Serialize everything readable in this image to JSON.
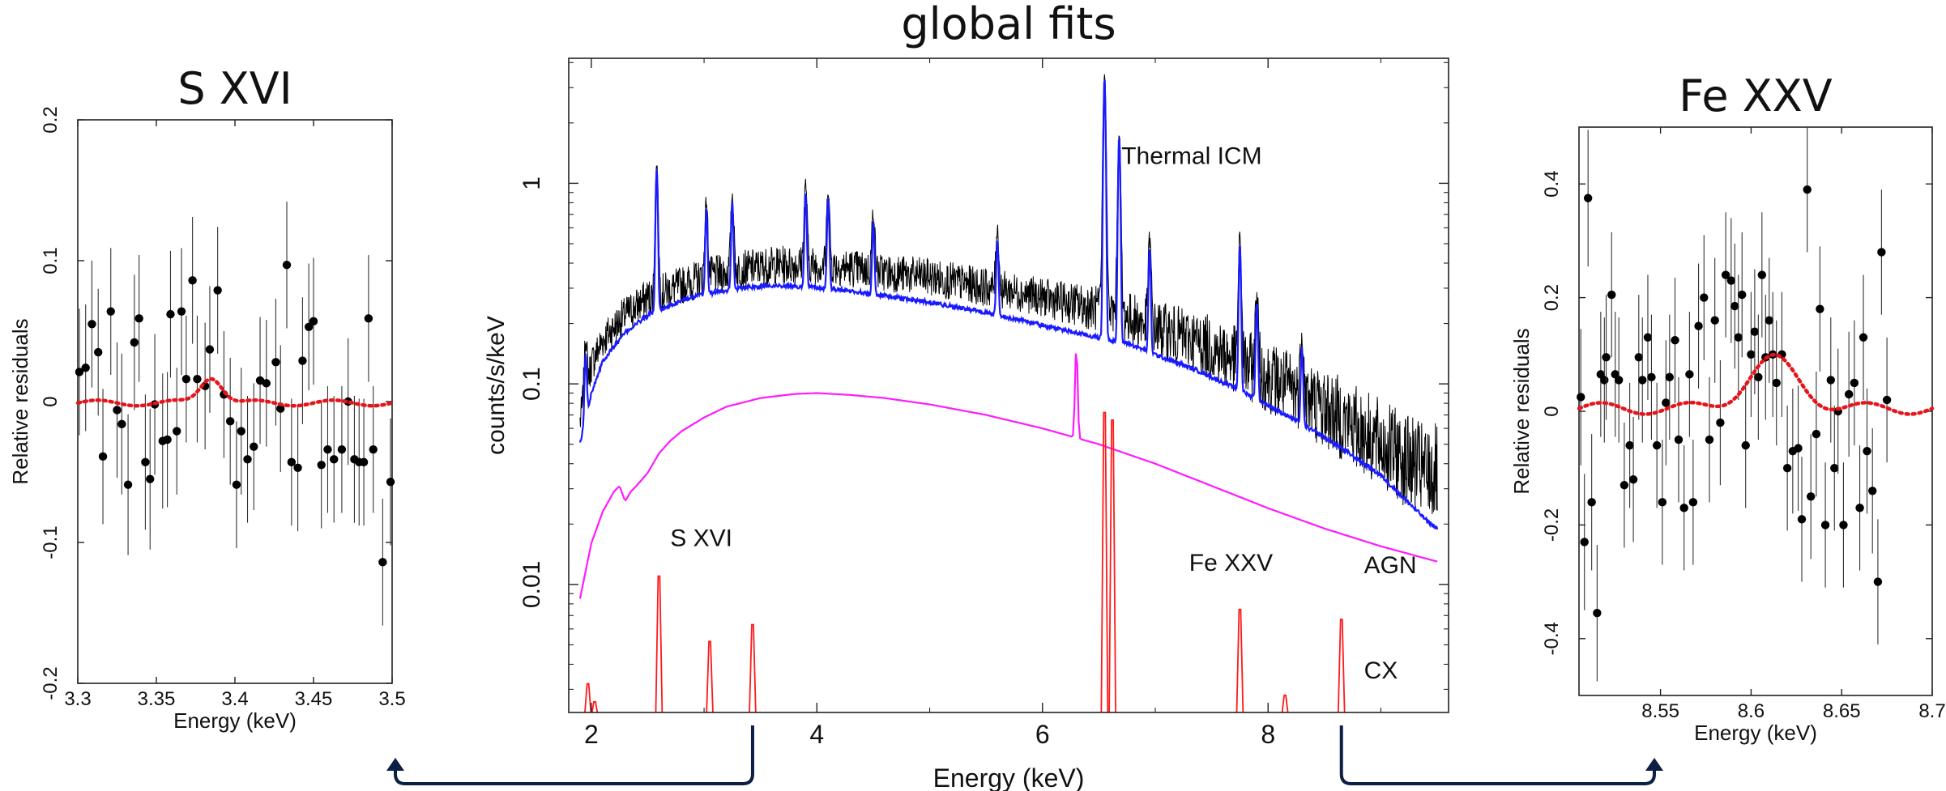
{
  "colors": {
    "data": "#000000",
    "thermal": "#1a1aff",
    "agn": "#ff1aff",
    "cx": "#ff1a1a",
    "model_dotted": "#e6151b",
    "arrow": "#0c1f44"
  },
  "chart_data": [
    {
      "id": "sxvi",
      "type": "scatter",
      "title": "S XVI",
      "xlabel": "Energy (keV)",
      "ylabel": "Relative residuals",
      "xlim": [
        3.3,
        3.5
      ],
      "ylim": [
        -0.2,
        0.2
      ],
      "x_ticks": [
        "3.3",
        "3.35",
        "3.4",
        "3.45",
        "3.5"
      ],
      "x_tick_values": [
        3.3,
        3.35,
        3.4,
        3.45,
        3.5
      ],
      "y_ticks": [
        "-0.2",
        "-0.1",
        "0",
        "0.1",
        "0.2"
      ],
      "y_tick_values": [
        -0.2,
        -0.1,
        0,
        0.1,
        0.2
      ],
      "points": [
        [
          3.301,
          0.021,
          0.045
        ],
        [
          3.305,
          0.024,
          0.045
        ],
        [
          3.309,
          0.055,
          0.045
        ],
        [
          3.313,
          0.035,
          0.045
        ],
        [
          3.316,
          -0.039,
          0.048
        ],
        [
          3.321,
          0.064,
          0.045
        ],
        [
          3.325,
          -0.006,
          0.048
        ],
        [
          3.328,
          -0.016,
          0.05
        ],
        [
          3.332,
          -0.059,
          0.05
        ],
        [
          3.336,
          0.042,
          0.048
        ],
        [
          3.339,
          0.059,
          0.045
        ],
        [
          3.343,
          -0.043,
          0.048
        ],
        [
          3.346,
          -0.055,
          0.05
        ],
        [
          3.349,
          -0.002,
          0.05
        ],
        [
          3.354,
          -0.028,
          0.048
        ],
        [
          3.357,
          -0.027,
          0.048
        ],
        [
          3.359,
          0.062,
          0.045
        ],
        [
          3.363,
          -0.021,
          0.045
        ],
        [
          3.366,
          0.064,
          0.045
        ],
        [
          3.369,
          0.016,
          0.045
        ],
        [
          3.373,
          0.086,
          0.045
        ],
        [
          3.376,
          0.016,
          0.045
        ],
        [
          3.381,
          0.011,
          0.045
        ],
        [
          3.384,
          0.037,
          0.045
        ],
        [
          3.389,
          0.079,
          0.045
        ],
        [
          3.393,
          0.005,
          0.045
        ],
        [
          3.397,
          -0.014,
          0.045
        ],
        [
          3.401,
          -0.059,
          0.045
        ],
        [
          3.404,
          -0.021,
          0.045
        ],
        [
          3.408,
          -0.041,
          0.045
        ],
        [
          3.412,
          -0.032,
          0.045
        ],
        [
          3.416,
          0.015,
          0.045
        ],
        [
          3.42,
          0.013,
          0.045
        ],
        [
          3.426,
          0.028,
          0.045
        ],
        [
          3.429,
          -0.005,
          0.045
        ],
        [
          3.433,
          0.097,
          0.045
        ],
        [
          3.436,
          -0.043,
          0.045
        ],
        [
          3.44,
          -0.047,
          0.045
        ],
        [
          3.443,
          0.029,
          0.045
        ],
        [
          3.447,
          0.053,
          0.045
        ],
        [
          3.45,
          0.057,
          0.045
        ],
        [
          3.455,
          -0.045,
          0.045
        ],
        [
          3.459,
          -0.034,
          0.045
        ],
        [
          3.463,
          -0.041,
          0.045
        ],
        [
          3.468,
          -0.034,
          0.045
        ],
        [
          3.472,
          0.0,
          0.045
        ],
        [
          3.476,
          -0.041,
          0.045
        ],
        [
          3.479,
          -0.043,
          0.045
        ],
        [
          3.482,
          -0.043,
          0.045
        ],
        [
          3.485,
          0.059,
          0.045
        ],
        [
          3.488,
          -0.034,
          0.045
        ],
        [
          3.494,
          -0.114,
          0.045
        ],
        [
          3.499,
          -0.057,
          0.045
        ]
      ],
      "model": {
        "type": "gaussian",
        "baseline": -0.001,
        "center": 3.385,
        "amplitude": 0.019,
        "sigma": 0.007,
        "ripple": 0.002
      }
    },
    {
      "id": "global",
      "type": "line",
      "title": "global fits",
      "xlabel": "Energy (keV)",
      "ylabel": "counts/s/keV",
      "xlim": [
        1.8,
        9.6
      ],
      "ylim": [
        0.0023,
        4.2
      ],
      "yscale": "log",
      "x_ticks": [
        "2",
        "4",
        "6",
        "8"
      ],
      "x_tick_values": [
        2,
        4,
        6,
        8
      ],
      "y_ticks": [
        "0.01",
        "0.1",
        "1"
      ],
      "y_tick_values": [
        0.01,
        0.1,
        1
      ],
      "annotations": [
        {
          "text": "Thermal ICM",
          "x": 6.7,
          "y": 1.25,
          "color": "#1a1aff"
        },
        {
          "text": "S XVI",
          "x": 2.7,
          "y": 0.0155,
          "color": "#ff1a1a"
        },
        {
          "text": "Fe XXV",
          "x": 7.3,
          "y": 0.0117,
          "color": "#ff1a1a"
        },
        {
          "text": "AGN",
          "x": 8.85,
          "y": 0.0114,
          "color": "#ff1aff"
        },
        {
          "text": "CX",
          "x": 8.85,
          "y": 0.0034,
          "color": "#ff1a1a"
        }
      ],
      "series": [
        {
          "role": "observed",
          "color": "#000000",
          "x": [
            1.9,
            2.0,
            2.1,
            2.3,
            2.5,
            2.8,
            3.0,
            3.3,
            3.6,
            3.9,
            4.2,
            4.6,
            5.0,
            5.4,
            5.8,
            6.2,
            6.45,
            6.75,
            7.0,
            7.4,
            7.8,
            8.2,
            8.6,
            9.0,
            9.4
          ],
          "y": [
            0.065,
            0.125,
            0.165,
            0.22,
            0.27,
            0.31,
            0.34,
            0.37,
            0.39,
            0.395,
            0.385,
            0.36,
            0.34,
            0.31,
            0.285,
            0.255,
            0.24,
            0.215,
            0.19,
            0.16,
            0.125,
            0.095,
            0.07,
            0.05,
            0.036
          ]
        },
        {
          "role": "thermal_icm",
          "color": "#1a1aff",
          "x": [
            1.9,
            2.0,
            2.1,
            2.3,
            2.5,
            2.8,
            3.0,
            3.3,
            3.6,
            3.9,
            4.2,
            4.6,
            5.0,
            5.4,
            5.8,
            6.2,
            6.45,
            6.75,
            7.0,
            7.4,
            7.8,
            8.2,
            8.6,
            9.0,
            9.4,
            9.5
          ],
          "y": [
            0.05,
            0.09,
            0.13,
            0.18,
            0.22,
            0.26,
            0.28,
            0.3,
            0.31,
            0.305,
            0.295,
            0.275,
            0.255,
            0.232,
            0.208,
            0.185,
            0.172,
            0.16,
            0.14,
            0.115,
            0.09,
            0.068,
            0.05,
            0.035,
            0.021,
            0.019
          ],
          "lines": [
            [
              1.95,
              0.075
            ],
            [
              2.58,
              0.95
            ],
            [
              3.02,
              0.47
            ],
            [
              3.25,
              0.51
            ],
            [
              3.9,
              0.6
            ],
            [
              4.1,
              0.55
            ],
            [
              4.5,
              0.36
            ],
            [
              5.6,
              0.3
            ],
            [
              6.55,
              3.2
            ],
            [
              6.68,
              1.55
            ],
            [
              6.95,
              0.33
            ],
            [
              7.75,
              0.4
            ],
            [
              7.9,
              0.17
            ],
            [
              8.3,
              0.09
            ]
          ]
        },
        {
          "role": "agn",
          "color": "#ff1aff",
          "x": [
            1.9,
            2.0,
            2.1,
            2.2,
            2.25,
            2.3,
            2.35,
            2.4,
            2.5,
            2.6,
            2.7,
            2.8,
            3.0,
            3.2,
            3.5,
            3.8,
            4.0,
            4.3,
            4.6,
            5.0,
            5.5,
            6.0,
            6.5,
            7.0,
            7.5,
            8.0,
            8.5,
            9.0,
            9.5
          ],
          "y": [
            0.0085,
            0.016,
            0.023,
            0.029,
            0.031,
            0.026,
            0.029,
            0.031,
            0.036,
            0.045,
            0.052,
            0.058,
            0.068,
            0.077,
            0.085,
            0.089,
            0.09,
            0.088,
            0.085,
            0.079,
            0.07,
            0.06,
            0.05,
            0.04,
            0.031,
            0.024,
            0.019,
            0.0155,
            0.013
          ],
          "lines": [
            [
              6.3,
              0.098
            ]
          ]
        },
        {
          "role": "cx",
          "color": "#ff1a1a",
          "baseline": 0.0023,
          "lines": [
            [
              1.97,
              0.0032
            ],
            [
              2.03,
              0.0026
            ],
            [
              2.6,
              0.011
            ],
            [
              3.05,
              0.0052
            ],
            [
              3.43,
              0.0063
            ],
            [
              6.55,
              0.072
            ],
            [
              6.62,
              0.066
            ],
            [
              7.75,
              0.0075
            ],
            [
              8.15,
              0.0028
            ],
            [
              8.65,
              0.0067
            ]
          ]
        }
      ]
    },
    {
      "id": "fexxv",
      "type": "scatter",
      "title": "Fe XXV",
      "xlabel": "Energy (keV)",
      "ylabel": "Relative residuals",
      "xlim": [
        8.505,
        8.7
      ],
      "ylim": [
        -0.5,
        0.5
      ],
      "x_ticks": [
        "8.55",
        "8.6",
        "8.65",
        "8.7"
      ],
      "x_tick_values": [
        8.55,
        8.6,
        8.65,
        8.7
      ],
      "y_ticks": [
        "-0.4",
        "-0.2",
        "0",
        "0.2",
        "0.4"
      ],
      "y_tick_values": [
        -0.4,
        -0.2,
        0,
        0.2,
        0.4
      ],
      "points": [
        [
          8.506,
          0.025,
          0.12
        ],
        [
          8.508,
          -0.23,
          0.12
        ],
        [
          8.51,
          0.375,
          0.12
        ],
        [
          8.512,
          -0.16,
          0.12
        ],
        [
          8.515,
          -0.355,
          0.12
        ],
        [
          8.517,
          0.065,
          0.11
        ],
        [
          8.519,
          0.055,
          0.11
        ],
        [
          8.52,
          0.095,
          0.11
        ],
        [
          8.523,
          0.205,
          0.11
        ],
        [
          8.525,
          0.065,
          0.11
        ],
        [
          8.527,
          0.055,
          0.11
        ],
        [
          8.53,
          -0.13,
          0.11
        ],
        [
          8.533,
          -0.06,
          0.11
        ],
        [
          8.535,
          -0.12,
          0.11
        ],
        [
          8.538,
          0.095,
          0.11
        ],
        [
          8.54,
          0.055,
          0.11
        ],
        [
          8.543,
          0.13,
          0.11
        ],
        [
          8.545,
          0.06,
          0.11
        ],
        [
          8.548,
          -0.06,
          0.11
        ],
        [
          8.551,
          -0.16,
          0.11
        ],
        [
          8.553,
          0.015,
          0.11
        ],
        [
          8.555,
          0.06,
          0.11
        ],
        [
          8.558,
          0.125,
          0.11
        ],
        [
          8.56,
          -0.05,
          0.11
        ],
        [
          8.563,
          -0.17,
          0.11
        ],
        [
          8.566,
          0.065,
          0.11
        ],
        [
          8.568,
          -0.16,
          0.11
        ],
        [
          8.571,
          0.15,
          0.11
        ],
        [
          8.574,
          0.2,
          0.11
        ],
        [
          8.577,
          -0.05,
          0.11
        ],
        [
          8.58,
          0.16,
          0.11
        ],
        [
          8.583,
          -0.02,
          0.11
        ],
        [
          8.586,
          0.24,
          0.11
        ],
        [
          8.589,
          0.23,
          0.11
        ],
        [
          8.591,
          0.185,
          0.11
        ],
        [
          8.593,
          0.13,
          0.11
        ],
        [
          8.595,
          0.205,
          0.11
        ],
        [
          8.597,
          -0.06,
          0.11
        ],
        [
          8.6,
          0.1,
          0.11
        ],
        [
          8.602,
          0.14,
          0.11
        ],
        [
          8.604,
          0.06,
          0.11
        ],
        [
          8.606,
          0.24,
          0.11
        ],
        [
          8.608,
          0.095,
          0.11
        ],
        [
          8.61,
          0.16,
          0.11
        ],
        [
          8.612,
          0.1,
          0.11
        ],
        [
          8.614,
          0.05,
          0.11
        ],
        [
          8.617,
          0.1,
          0.11
        ],
        [
          8.62,
          -0.1,
          0.11
        ],
        [
          8.623,
          -0.07,
          0.11
        ],
        [
          8.626,
          -0.065,
          0.11
        ],
        [
          8.628,
          -0.19,
          0.11
        ],
        [
          8.631,
          0.39,
          0.11
        ],
        [
          8.633,
          -0.15,
          0.11
        ],
        [
          8.636,
          -0.04,
          0.11
        ],
        [
          8.638,
          0.18,
          0.11
        ],
        [
          8.641,
          -0.2,
          0.11
        ],
        [
          8.644,
          0.055,
          0.11
        ],
        [
          8.646,
          -0.1,
          0.11
        ],
        [
          8.648,
          0.0,
          0.11
        ],
        [
          8.651,
          -0.2,
          0.11
        ],
        [
          8.654,
          0.03,
          0.11
        ],
        [
          8.657,
          0.05,
          0.11
        ],
        [
          8.66,
          -0.17,
          0.11
        ],
        [
          8.662,
          0.13,
          0.11
        ],
        [
          8.664,
          -0.07,
          0.11
        ],
        [
          8.667,
          -0.14,
          0.11
        ],
        [
          8.67,
          -0.3,
          0.11
        ],
        [
          8.672,
          0.28,
          0.11
        ],
        [
          8.675,
          0.02,
          0.11
        ]
      ],
      "model": {
        "type": "gaussian",
        "baseline": 0.005,
        "center": 8.612,
        "amplitude": 0.085,
        "sigma": 0.014,
        "ripple": 0.01
      }
    }
  ]
}
